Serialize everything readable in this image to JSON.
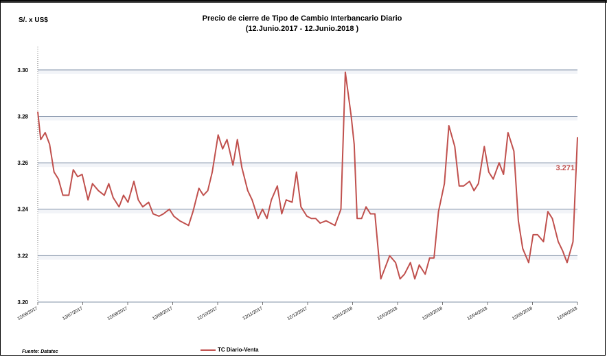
{
  "header": {
    "currency_label": "S/. x US$",
    "title_line1": "Precio de cierre de Tipo de Cambio Interbancario  Diario",
    "title_line2": "(12.Junio.2017  -  12.Junio.2018  )"
  },
  "footer": {
    "source": "Fuente: Datatec"
  },
  "chart_data": {
    "type": "line",
    "ylabel": "S/. x US$",
    "ylim": [
      3.2,
      3.3
    ],
    "yticks": [
      "3.20",
      "3.22",
      "3.24",
      "3.26",
      "3.28",
      "3.30"
    ],
    "xticks": [
      "12/06/2017",
      "12/07/2017",
      "12/08/2017",
      "12/09/2017",
      "12/10/2017",
      "12/11/2017",
      "12/12/2017",
      "12/01/2018",
      "12/02/2018",
      "12/03/2018",
      "12/04/2018",
      "12/05/2018",
      "12/06/2018"
    ],
    "grid": true,
    "legend_position": "bottom",
    "last_value_label": "3.271",
    "colors": {
      "series": "#c0504d",
      "grid": "#7f8fa6",
      "band": "#f2f4f8"
    },
    "series": [
      {
        "name": "TC Diario-Venta",
        "x": [
          0,
          2,
          5,
          8,
          11,
          14,
          17,
          21,
          24,
          27,
          30,
          34,
          37,
          41,
          45,
          48,
          51,
          55,
          58,
          61,
          65,
          68,
          71,
          75,
          78,
          82,
          85,
          89,
          92,
          96,
          99,
          102,
          105,
          109,
          112,
          115,
          118,
          122,
          125,
          128,
          132,
          135,
          138,
          142,
          145,
          149,
          152,
          155,
          158,
          162,
          165,
          168,
          172,
          175,
          178,
          182,
          185,
          188,
          191,
          195,
          198,
          201,
          205,
          208,
          212,
          214,
          216,
          219,
          222,
          225,
          228,
          232,
          235,
          238,
          242,
          245,
          248,
          252,
          255,
          258,
          262,
          265,
          268,
          271,
          275,
          278,
          282,
          285,
          288,
          292,
          295,
          298,
          302,
          305,
          308,
          312,
          315,
          318,
          322,
          325,
          328,
          332,
          335,
          338,
          342,
          345,
          348,
          352,
          355,
          358,
          362,
          365
        ],
        "values": [
          3.282,
          3.27,
          3.273,
          3.268,
          3.256,
          3.253,
          3.246,
          3.246,
          3.257,
          3.254,
          3.255,
          3.244,
          3.251,
          3.248,
          3.246,
          3.251,
          3.245,
          3.241,
          3.246,
          3.243,
          3.252,
          3.244,
          3.241,
          3.243,
          3.238,
          3.237,
          3.238,
          3.24,
          3.237,
          3.235,
          3.234,
          3.233,
          3.239,
          3.249,
          3.246,
          3.248,
          3.256,
          3.272,
          3.266,
          3.27,
          3.259,
          3.27,
          3.258,
          3.248,
          3.244,
          3.236,
          3.24,
          3.236,
          3.244,
          3.25,
          3.238,
          3.244,
          3.243,
          3.256,
          3.241,
          3.237,
          3.236,
          3.236,
          3.234,
          3.235,
          3.234,
          3.233,
          3.24,
          3.299,
          3.28,
          3.268,
          3.236,
          3.236,
          3.241,
          3.238,
          3.238,
          3.21,
          3.215,
          3.22,
          3.217,
          3.21,
          3.212,
          3.217,
          3.21,
          3.216,
          3.212,
          3.219,
          3.219,
          3.239,
          3.251,
          3.276,
          3.267,
          3.25,
          3.25,
          3.252,
          3.248,
          3.251,
          3.267,
          3.256,
          3.253,
          3.26,
          3.255,
          3.273,
          3.265,
          3.235,
          3.223,
          3.217,
          3.229,
          3.229,
          3.226,
          3.239,
          3.236,
          3.226,
          3.222,
          3.217,
          3.226,
          3.271
        ]
      }
    ]
  }
}
